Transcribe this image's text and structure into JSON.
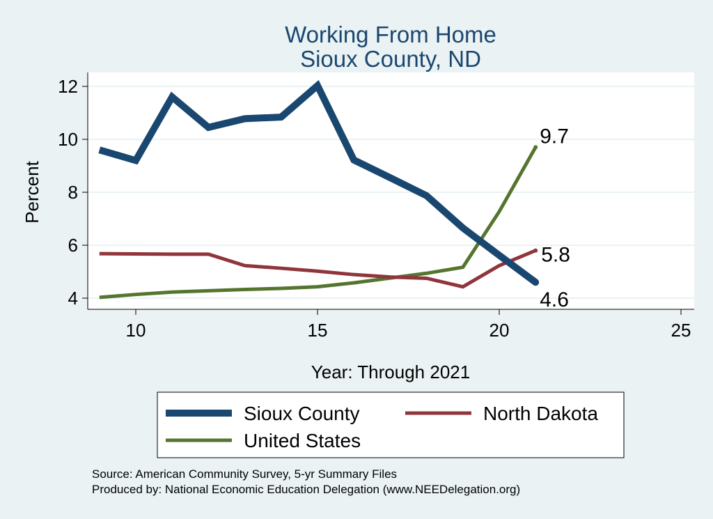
{
  "chart_data": {
    "type": "line",
    "title": [
      "Working From Home",
      "Sioux County, ND"
    ],
    "xlabel": "Year: Through 2021",
    "ylabel": "Percent",
    "xlim": [
      9,
      25
    ],
    "ylim": [
      4,
      12
    ],
    "xticks": [
      10,
      15,
      20,
      25
    ],
    "yticks": [
      4,
      6,
      8,
      10,
      12
    ],
    "grid": true,
    "legend_position": "bottom",
    "series": [
      {
        "name": "Sioux County",
        "color": "#1a476f",
        "x": [
          9,
          10,
          11,
          12,
          13,
          14,
          15,
          16,
          17,
          18,
          19,
          20,
          21
        ],
        "y": [
          9.6,
          9.2,
          11.6,
          10.45,
          10.78,
          10.84,
          12.03,
          9.22,
          8.55,
          7.87,
          6.65,
          5.62,
          4.6
        ],
        "end_label": "4.6"
      },
      {
        "name": "North Dakota",
        "color": "#90353b",
        "x": [
          9,
          10,
          11,
          12,
          13,
          14,
          15,
          16,
          17,
          18,
          19,
          20,
          21
        ],
        "y": [
          5.68,
          5.67,
          5.66,
          5.66,
          5.23,
          5.13,
          5.02,
          4.89,
          4.8,
          4.75,
          4.43,
          5.23,
          5.8
        ],
        "end_label": "5.8"
      },
      {
        "name": "United States",
        "color": "#55752f",
        "x": [
          9,
          10,
          11,
          12,
          13,
          14,
          15,
          16,
          17,
          18,
          19,
          20,
          21
        ],
        "y": [
          4.03,
          4.14,
          4.23,
          4.28,
          4.33,
          4.37,
          4.43,
          4.58,
          4.76,
          4.94,
          5.17,
          7.27,
          9.7
        ],
        "end_label": "9.7"
      }
    ]
  },
  "footer": {
    "source": "Source: American Community Survey, 5-yr Summary Files",
    "produced_by": "Produced by: National Economic Education Delegation (www.NEEDelegation.org)"
  }
}
